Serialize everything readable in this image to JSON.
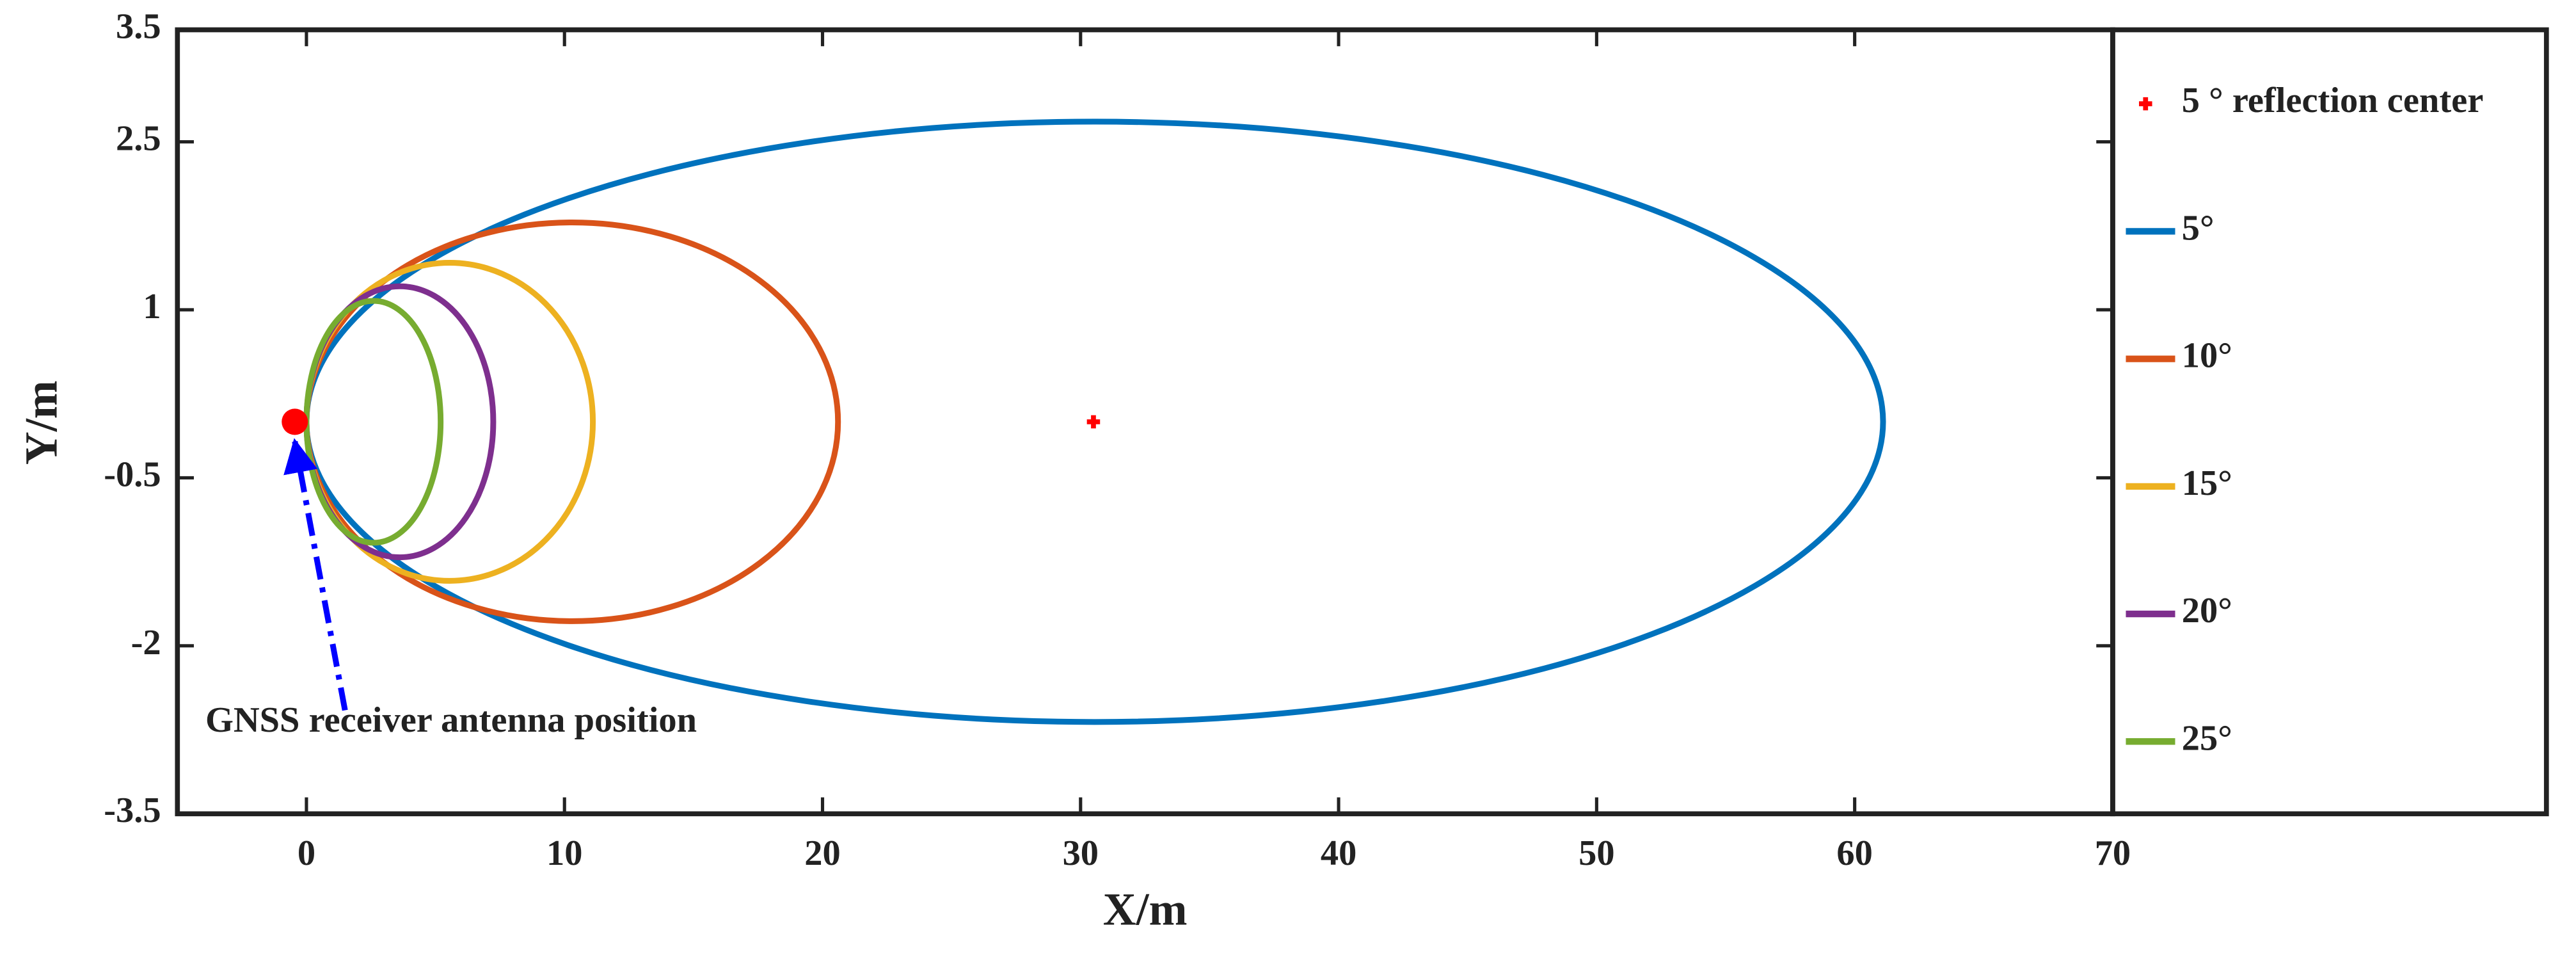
{
  "chart_data": {
    "type": "ellipse",
    "xlabel": "X/m",
    "ylabel": "Y/m",
    "xlim": [
      -5,
      70
    ],
    "xticks": [
      0,
      10,
      20,
      30,
      40,
      50,
      60,
      70
    ],
    "ylim": [
      -3.5,
      3.5
    ],
    "yticks": [
      -3.5,
      -2,
      -0.5,
      1,
      2.5,
      3.5
    ],
    "series": [
      {
        "name": "5°",
        "color": "#0072bd",
        "cx": 30.55,
        "cy": 0,
        "a": 30.55,
        "b": 2.68
      },
      {
        "name": "10°",
        "color": "#d95319",
        "cx": 10.3,
        "cy": 0,
        "a": 10.3,
        "b": 1.78
      },
      {
        "name": "15°",
        "color": "#edb120",
        "cx": 5.55,
        "cy": 0,
        "a": 5.55,
        "b": 1.42
      },
      {
        "name": "20°",
        "color": "#7e2f8e",
        "cx": 3.62,
        "cy": 0,
        "a": 3.62,
        "b": 1.21
      },
      {
        "name": "25°",
        "color": "#77ac30",
        "cx": 2.6,
        "cy": 0,
        "a": 2.6,
        "b": 1.08
      }
    ],
    "points": [
      {
        "name": "5 ° reflection center",
        "color": "#ff0000",
        "x": 30.5,
        "y": 0
      }
    ],
    "annotation": {
      "text": "GNSS receiver antenna position",
      "x": -0.45,
      "y": 0,
      "color": "#ff0000",
      "arrow_color": "#0000ff"
    }
  }
}
